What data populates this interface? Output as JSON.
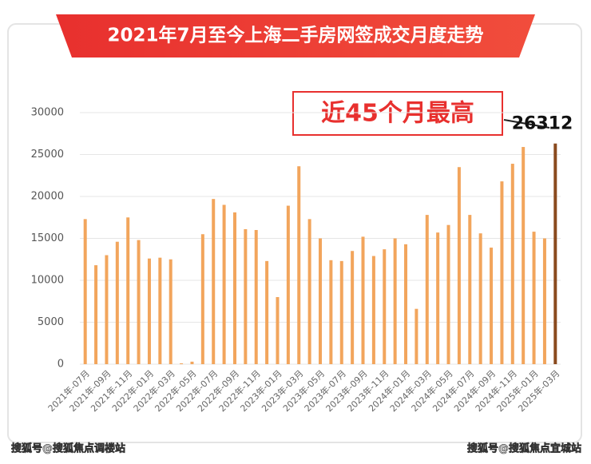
{
  "chart_data": {
    "type": "bar",
    "title": "2021年7月至今上海二手房网签成交月度走势",
    "annotation": "近45个月最高",
    "watermarks": [
      "搜狐号@搜狐焦点调楼站",
      "搜狐号@搜狐焦点宜城站"
    ],
    "categories": [
      "2021年-07月",
      null,
      "2021年-09月",
      null,
      "2021年-11月",
      null,
      "2022年-01月",
      null,
      "2022年-03月",
      null,
      "2022年-05月",
      null,
      "2022年-07月",
      null,
      "2022年-09月",
      null,
      "2022年-11月",
      null,
      "2023年-01月",
      null,
      "2023年-03月",
      null,
      "2023年-05月",
      null,
      "2023年-07月",
      null,
      "2023年-09月",
      null,
      "2023年-11月",
      null,
      "2024年-01月",
      null,
      "2024年-03月",
      null,
      "2024年-05月",
      null,
      "2024年-07月",
      null,
      "2024年-09月",
      null,
      "2024年-11月",
      null,
      "2025年-01月",
      null,
      "2025年-03月"
    ],
    "values": [
      17300,
      11800,
      13000,
      14600,
      17500,
      14800,
      12600,
      12700,
      12500,
      100,
      300,
      15500,
      19700,
      19000,
      18100,
      16100,
      16000,
      12300,
      8000,
      18900,
      23600,
      17300,
      15000,
      12400,
      12300,
      13500,
      15200,
      12900,
      13700,
      15000,
      14300,
      6600,
      17800,
      15700,
      16600,
      23500,
      17800,
      15600,
      13900,
      21800,
      23900,
      25900,
      15800,
      15000,
      26312
    ],
    "colors": [
      "#f2a55c",
      "#f2a55c",
      "#f2a55c",
      "#f2a55c",
      "#f2a55c",
      "#f2a55c",
      "#f2a55c",
      "#f2a55c",
      "#f2a55c",
      "#f2a55c",
      "#f2a55c",
      "#f2a55c",
      "#f2a55c",
      "#f2a55c",
      "#f2a55c",
      "#f2a55c",
      "#f2a55c",
      "#f2a55c",
      "#f2a55c",
      "#f2a55c",
      "#f2a55c",
      "#f2a55c",
      "#f2a55c",
      "#f2a55c",
      "#f2a55c",
      "#f2a55c",
      "#f2a55c",
      "#f2a55c",
      "#f2a55c",
      "#f2a55c",
      "#f2a55c",
      "#f2a55c",
      "#f2a55c",
      "#f2a55c",
      "#f2a55c",
      "#f2a55c",
      "#f2a55c",
      "#f2a55c",
      "#f2a55c",
      "#f2a55c",
      "#f2a55c",
      "#f2a55c",
      "#f2a55c",
      "#f2a55c",
      "#8a4a1e"
    ],
    "ylim": [
      0,
      30000
    ],
    "yticks": [
      0,
      5000,
      10000,
      15000,
      20000,
      25000,
      30000
    ],
    "grid": true
  }
}
